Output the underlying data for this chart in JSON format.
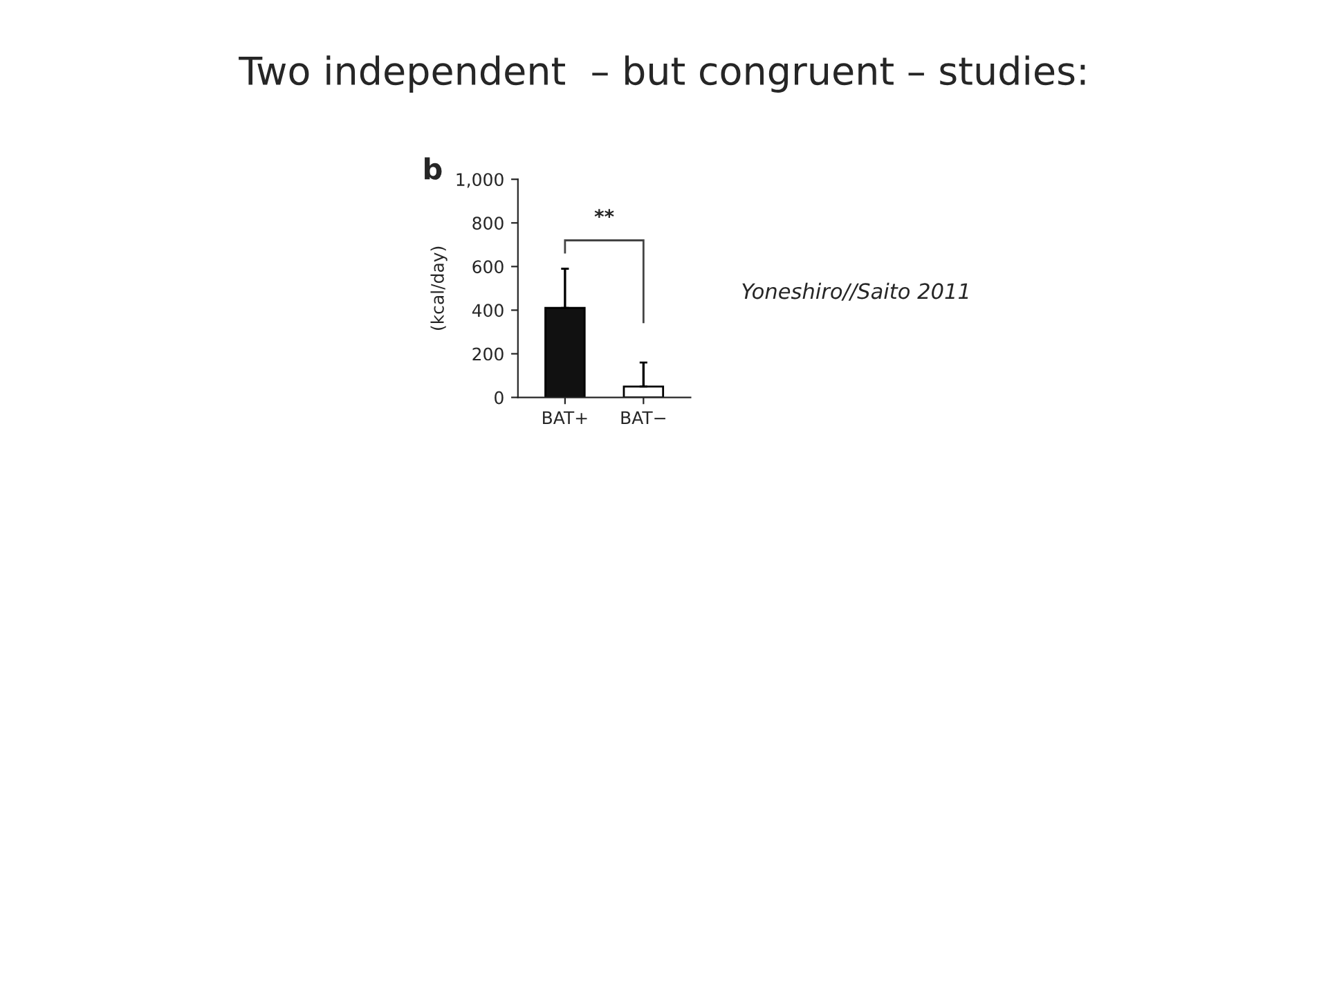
{
  "chart_data": {
    "type": "bar",
    "title": "Two independent  – but congruent – studies:",
    "ylabel": "(kcal/day)",
    "categories": [
      "BAT+",
      "BAT−"
    ],
    "values": [
      410,
      50
    ],
    "colors": [
      "#111111",
      "#ffffff"
    ],
    "errors": [
      [
        410,
        590
      ],
      [
        50,
        160
      ]
    ],
    "ylim": [
      0,
      1000
    ],
    "yticks": [
      0,
      200,
      400,
      600,
      800,
      {
        "value": 1000,
        "label": "1,000"
      }
    ],
    "grid": false,
    "annotations": [
      "b",
      "**",
      "Yoneshiro//Saito 2011"
    ]
  }
}
